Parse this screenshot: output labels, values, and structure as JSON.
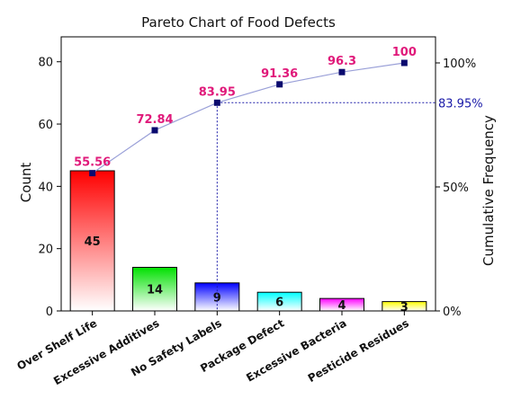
{
  "chart_data": {
    "type": "bar",
    "title": "Pareto Chart of Food Defects",
    "ylabel": "Count",
    "y2label": "Cumulative Frequency",
    "categories": [
      "Over Shelf Life",
      "Excessive Additives",
      "No Safety Labels",
      "Package Defect",
      "Excessive Bacteria",
      "Pesticide Residues"
    ],
    "values": [
      45,
      14,
      9,
      6,
      4,
      3
    ],
    "value_labels": [
      "45",
      "14",
      "9",
      "6",
      "4",
      "3"
    ],
    "bar_colors": [
      "#ff0000",
      "#00e000",
      "#0000ff",
      "#00ffff",
      "#ff00ff",
      "#ffff00"
    ],
    "cumulative": [
      55.56,
      72.84,
      83.95,
      91.36,
      96.3,
      100
    ],
    "cumulative_labels": [
      "55.56",
      "72.84",
      "83.95",
      "91.36",
      "96.3",
      "100"
    ],
    "ylim": [
      0,
      88
    ],
    "yticks": [
      0,
      20,
      40,
      60,
      80
    ],
    "y2ticks": [
      {
        "value": 0,
        "label": "0%"
      },
      {
        "value": 50,
        "label": "50%"
      },
      {
        "value": 100,
        "label": "100%"
      }
    ],
    "reference": {
      "category_index": 2,
      "value": 83.95,
      "label": "83.95%"
    },
    "grid": false,
    "legend": "none",
    "colors": {
      "line": "#9aa0d8",
      "marker": "#0a0a6e",
      "cumulative_label": "#e0197a",
      "reference": "#1a1aa8"
    }
  }
}
